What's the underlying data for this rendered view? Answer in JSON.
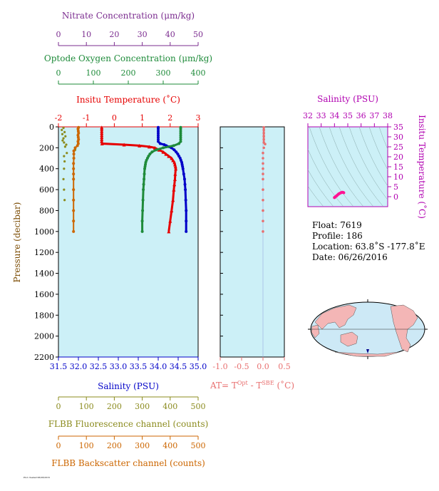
{
  "chart_data": {
    "type": "scatter",
    "main_panel": {
      "y_axis": {
        "label": "Pressure (decibar)",
        "range": [
          0,
          2200
        ],
        "ticks": [
          0,
          200,
          400,
          600,
          800,
          1000,
          1200,
          1400,
          1600,
          1800,
          2000,
          2200
        ],
        "reversed": true
      },
      "axes": {
        "nitrate": {
          "label": "Nitrate Concentration (μm/kg)",
          "range": [
            0,
            50
          ],
          "ticks": [
            0,
            10,
            20,
            30,
            40,
            50
          ],
          "color": "#7b2c8f"
        },
        "oxygen": {
          "label": "Optode Oxygen Concentration (μm/kg)",
          "range": [
            0,
            400
          ],
          "ticks": [
            0,
            100,
            200,
            300,
            400
          ],
          "color": "#1e8b3a"
        },
        "temperature": {
          "label": "Insitu Temperature (˚C)",
          "range": [
            -2,
            3
          ],
          "ticks": [
            -2,
            -1,
            0,
            1,
            2,
            3
          ],
          "color": "#e60000"
        },
        "salinity": {
          "label": "Salinity (PSU)",
          "range": [
            31.5,
            35.0
          ],
          "ticks": [
            "31.5",
            "32.0",
            "32.5",
            "33.0",
            "33.5",
            "34.0",
            "34.5",
            "35.0"
          ],
          "color": "#0000c8"
        },
        "fluorescence": {
          "label": "FLBB Fluorescence channel (counts)",
          "range": [
            0,
            500
          ],
          "ticks": [
            0,
            100,
            200,
            300,
            400,
            500
          ],
          "color": "#8b8b1e"
        },
        "backscatter": {
          "label": "FLBB Backscatter channel (counts)",
          "range": [
            0,
            500
          ],
          "ticks": [
            0,
            100,
            200,
            300,
            400,
            500
          ],
          "color": "#cc6600"
        }
      },
      "series": [
        {
          "key": "temperature",
          "pressure": [
            5,
            20,
            40,
            60,
            80,
            100,
            120,
            140,
            160,
            170,
            180,
            190,
            200,
            220,
            240,
            260,
            280,
            300,
            320,
            340,
            360,
            380,
            400,
            450,
            500,
            550,
            600,
            700,
            800,
            900,
            1000
          ],
          "values": [
            -0.45,
            -0.45,
            -0.45,
            -0.45,
            -0.45,
            -0.45,
            -0.45,
            -0.45,
            -0.44,
            0.35,
            0.9,
            1.25,
            1.45,
            1.6,
            1.75,
            1.85,
            1.95,
            2.05,
            2.1,
            2.15,
            2.17,
            2.19,
            2.2,
            2.18,
            2.17,
            2.15,
            2.13,
            2.1,
            2.05,
            2.0,
            1.95
          ]
        },
        {
          "key": "salinity",
          "pressure": [
            5,
            20,
            40,
            60,
            80,
            100,
            120,
            140,
            160,
            170,
            180,
            190,
            200,
            220,
            240,
            260,
            280,
            300,
            320,
            340,
            360,
            380,
            400,
            450,
            500,
            550,
            600,
            700,
            800,
            900,
            1000
          ],
          "values": [
            34.0,
            34.0,
            34.0,
            34.0,
            34.0,
            34.0,
            34.0,
            34.0,
            34.05,
            34.15,
            34.2,
            34.27,
            34.33,
            34.4,
            34.45,
            34.49,
            34.52,
            34.55,
            34.57,
            34.59,
            34.6,
            34.61,
            34.62,
            34.64,
            34.66,
            34.67,
            34.68,
            34.69,
            34.7,
            34.7,
            34.7
          ]
        },
        {
          "key": "oxygen",
          "pressure": [
            5,
            20,
            40,
            60,
            80,
            100,
            120,
            140,
            160,
            180,
            200,
            220,
            240,
            260,
            280,
            300,
            320,
            340,
            360,
            380,
            400,
            450,
            500,
            550,
            600,
            700,
            800,
            900,
            1000
          ],
          "values": [
            350,
            350,
            350,
            350,
            350,
            350,
            350,
            350,
            345,
            330,
            300,
            280,
            268,
            262,
            258,
            255,
            252,
            250,
            249,
            248,
            247,
            246,
            245,
            244,
            243,
            242,
            241,
            240,
            240
          ]
        },
        {
          "key": "fluorescence",
          "pressure": [
            10,
            30,
            50,
            70,
            90,
            110,
            130,
            150,
            170,
            190,
            220,
            250,
            280,
            330,
            400,
            500,
            600,
            700
          ],
          "values": [
            18,
            12,
            22,
            14,
            25,
            18,
            15,
            20,
            28,
            24,
            60,
            30,
            20,
            22,
            20,
            18,
            20,
            22
          ]
        },
        {
          "key": "backscatter",
          "pressure": [
            5,
            20,
            40,
            60,
            80,
            100,
            120,
            140,
            160,
            180,
            200,
            230,
            260,
            300,
            350,
            400,
            450,
            500,
            600,
            700,
            800,
            900,
            1000
          ],
          "values": [
            72,
            70,
            71,
            72,
            70,
            71,
            72,
            70,
            71,
            68,
            60,
            55,
            55,
            55,
            54,
            54,
            54,
            54,
            54,
            54,
            54,
            54,
            54
          ]
        }
      ]
    },
    "at_panel": {
      "xlabel_main": "AT= T",
      "xlabel_sup1": "Opt",
      "xlabel_mid": " - T",
      "xlabel_sup2": "SBE",
      "xlabel_end": " (˚C)",
      "x_range": [
        -1.0,
        0.5
      ],
      "ticks": [
        "-1.0",
        "-0.5",
        "0.0",
        "0.5"
      ],
      "color": "#e87070",
      "pressure": [
        5,
        30,
        60,
        90,
        120,
        150,
        165,
        200,
        250,
        300,
        350,
        400,
        450,
        500,
        600,
        700,
        800,
        900,
        1000
      ],
      "values": [
        0.02,
        0.02,
        0.02,
        0.02,
        0.02,
        0.02,
        0.05,
        0.02,
        0.0,
        0.0,
        0.0,
        0.0,
        0.0,
        0.0,
        0.0,
        0.0,
        0.0,
        0.0,
        0.0
      ]
    },
    "ts_panel": {
      "title": "Salinity (PSU)",
      "x_ticks": [
        32,
        33,
        34,
        35,
        36,
        37,
        38
      ],
      "y_label": "Insitu Temperature (˚C)",
      "y_ticks": [
        0,
        5,
        10,
        15,
        20,
        25,
        30,
        35
      ],
      "x_range": [
        32,
        38
      ],
      "y_range": [
        -5,
        35
      ],
      "color": "#ff1493",
      "sal": [
        34.0,
        34.0,
        34.15,
        34.33,
        34.5,
        34.6,
        34.65,
        34.7
      ],
      "temp": [
        -0.45,
        -0.44,
        0.35,
        1.45,
        2.05,
        2.2,
        2.15,
        1.95
      ]
    }
  },
  "info": {
    "float": "Float:  7619",
    "profile": "Profile:  186",
    "location": "Location:  63.8˚S  -177.8˚E",
    "date": "Date:  06/26/2016"
  },
  "footer": {
    "tiny": "Plot created 06/28/2016"
  }
}
